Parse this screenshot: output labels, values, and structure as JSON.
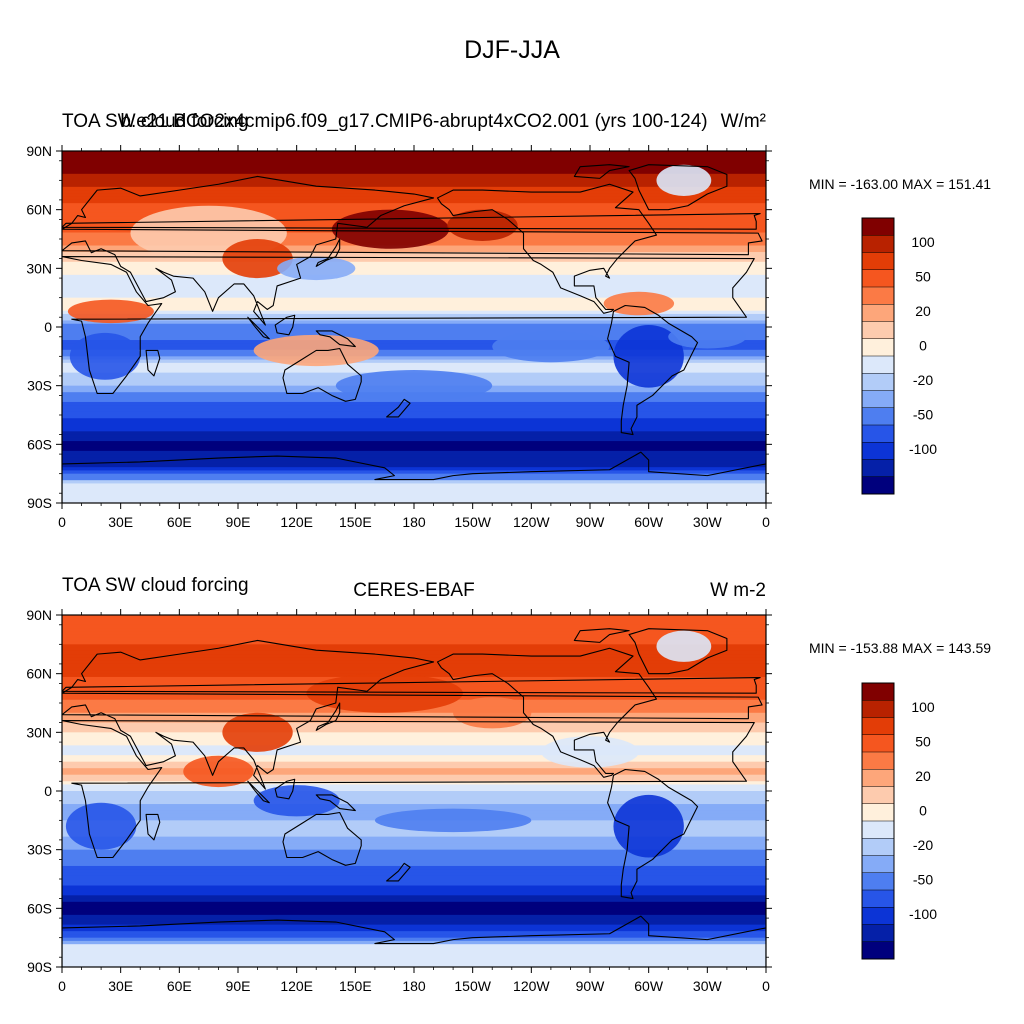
{
  "main_title": "DJF-JJA",
  "panels": [
    {
      "title_left": "TOA SW cloud forcing",
      "title_center": "b.e21.BCO2x4cmip6.f09_g17.CMIP6-abrupt4xCO2.001 (yrs 100-124)",
      "units": "W/m²",
      "stats": "MIN = -163.00 MAX = 151.41",
      "lat_labels": [
        "90N",
        "60N",
        "30N",
        "0",
        "30S",
        "60S",
        "90S"
      ],
      "lon_labels": [
        "0",
        "30E",
        "60E",
        "90E",
        "120E",
        "150E",
        "180",
        "150W",
        "120W",
        "90W",
        "60W",
        "30W",
        "0"
      ],
      "bands": [
        {
          "lat": 90,
          "v": 150
        },
        {
          "lat": 80,
          "v": 130
        },
        {
          "lat": 70,
          "v": 95
        },
        {
          "lat": 60,
          "v": 65
        },
        {
          "lat": 50,
          "v": 55
        },
        {
          "lat": 40,
          "v": 25
        },
        {
          "lat": 30,
          "v": 5
        },
        {
          "lat": 20,
          "v": -10
        },
        {
          "lat": 10,
          "v": 10
        },
        {
          "lat": 0,
          "v": -40
        },
        {
          "lat": -10,
          "v": -55
        },
        {
          "lat": -20,
          "v": -5
        },
        {
          "lat": -30,
          "v": -20
        },
        {
          "lat": -40,
          "v": -55
        },
        {
          "lat": -50,
          "v": -85
        },
        {
          "lat": -60,
          "v": -130
        },
        {
          "lat": -70,
          "v": -110
        },
        {
          "lat": -80,
          "v": -5
        },
        {
          "lat": -90,
          "v": 0
        }
      ]
    },
    {
      "title_left": "TOA SW cloud forcing",
      "title_center": "CERES-EBAF",
      "units": "W m-2",
      "stats": "MIN = -153.88 MAX = 143.59",
      "lat_labels": [
        "90N",
        "60N",
        "30N",
        "0",
        "30S",
        "60S",
        "90S"
      ],
      "lon_labels": [
        "0",
        "30E",
        "60E",
        "90E",
        "120E",
        "150E",
        "180",
        "150W",
        "120W",
        "90W",
        "60W",
        "30W",
        "0"
      ],
      "bands": [
        {
          "lat": 90,
          "v": 60
        },
        {
          "lat": 80,
          "v": 70
        },
        {
          "lat": 70,
          "v": 80
        },
        {
          "lat": 60,
          "v": 80
        },
        {
          "lat": 50,
          "v": 60
        },
        {
          "lat": 40,
          "v": 30
        },
        {
          "lat": 30,
          "v": 10
        },
        {
          "lat": 20,
          "v": -5
        },
        {
          "lat": 10,
          "v": 25
        },
        {
          "lat": 0,
          "v": -10
        },
        {
          "lat": -10,
          "v": -25
        },
        {
          "lat": -20,
          "v": -15
        },
        {
          "lat": -30,
          "v": -30
        },
        {
          "lat": -40,
          "v": -55
        },
        {
          "lat": -50,
          "v": -80
        },
        {
          "lat": -60,
          "v": -140
        },
        {
          "lat": -70,
          "v": -90
        },
        {
          "lat": -80,
          "v": 0
        },
        {
          "lat": -90,
          "v": -5
        }
      ]
    }
  ],
  "colorbar": {
    "colors": [
      "#800000",
      "#b82200",
      "#e33d07",
      "#f5561f",
      "#fb7a45",
      "#fda67a",
      "#fdcbae",
      "#fff0dc",
      "#dce8fa",
      "#b2ccf8",
      "#85abf7",
      "#4e7ef0",
      "#2755e8",
      "#0c34d6",
      "#0520a8",
      "#00007d"
    ],
    "thresholds": [
      125,
      100,
      75,
      50,
      30,
      20,
      10,
      0,
      -10,
      -20,
      -30,
      -50,
      -75,
      -100,
      -125
    ],
    "tick_labels": [
      "100",
      "50",
      "20",
      "0",
      "-20",
      "-50",
      "-100"
    ],
    "tick_after_index": [
      1,
      3,
      5,
      7,
      9,
      11,
      13
    ]
  },
  "coastline_color": "#000000"
}
